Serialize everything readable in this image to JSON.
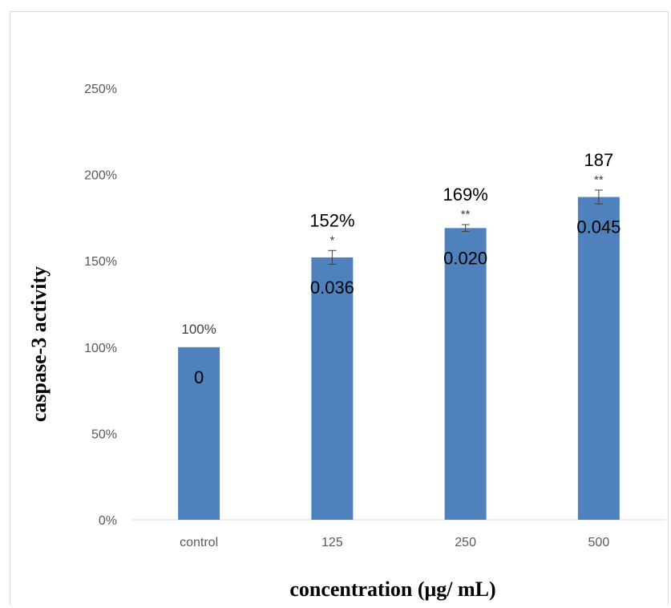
{
  "chart_data": {
    "type": "bar",
    "categories": [
      "control",
      "125",
      "250",
      "500"
    ],
    "values": [
      100,
      152,
      169,
      187
    ],
    "errors": [
      0,
      4,
      2,
      4
    ],
    "value_labels": [
      "100%",
      "152%",
      "169%",
      "187"
    ],
    "significance": [
      "",
      "*",
      "**",
      "**"
    ],
    "p_values": [
      "0",
      "0.036",
      "0.020",
      "0.045"
    ],
    "xlabel": "concentration (μg/ mL)",
    "ylabel": "caspase-3 activity",
    "ylim": [
      0,
      250
    ],
    "yticks": [
      "0%",
      "50%",
      "100%",
      "150%",
      "200%",
      "250%"
    ],
    "bar_color": "#4f81bd",
    "grid": false
  }
}
